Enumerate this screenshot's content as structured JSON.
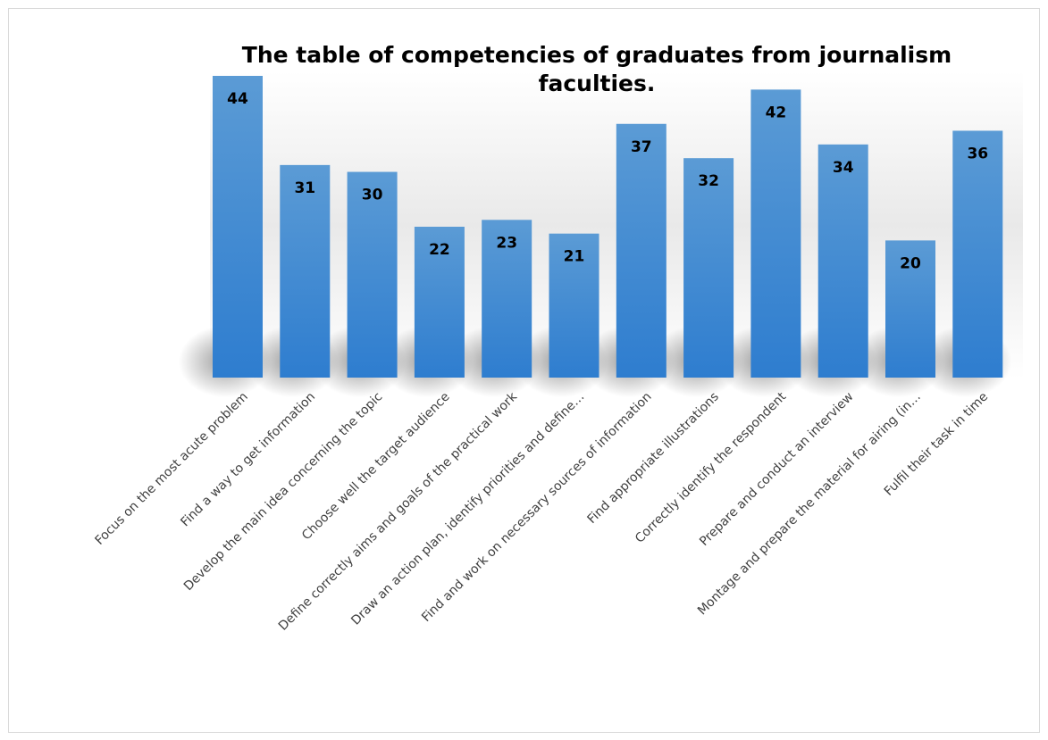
{
  "chart_data": {
    "type": "bar",
    "title_lines": [
      "The table of competencies of graduates from journalism",
      "faculties."
    ],
    "categories": [
      "Focus on the most acute problem",
      "Find a way to get information",
      "Develop the main idea concerning the topic",
      "Choose well the target audience",
      "Define correctly aims and goals of the practical work",
      "Draw an action plan, identify priorities and define…",
      "Find and work on necessary sources of information",
      "Find appropriate illustrations",
      "Correctly identify the respondent",
      "Prepare and conduct an interview",
      "Montage and prepare the material for airing (in…",
      "Fulfil their task in time"
    ],
    "values": [
      44,
      31,
      30,
      22,
      23,
      21,
      37,
      32,
      42,
      34,
      20,
      36
    ],
    "ylim": [
      0,
      44
    ],
    "grid": false,
    "legend": "none",
    "data_labels": "inside-end",
    "colors": {
      "bar_top": "#5b9bd5",
      "bar_bottom": "#2e7dcf",
      "label": "#000000",
      "tick": "#404040",
      "shadow": "#8c8c8c",
      "background_band": "#e6e6e6"
    }
  }
}
